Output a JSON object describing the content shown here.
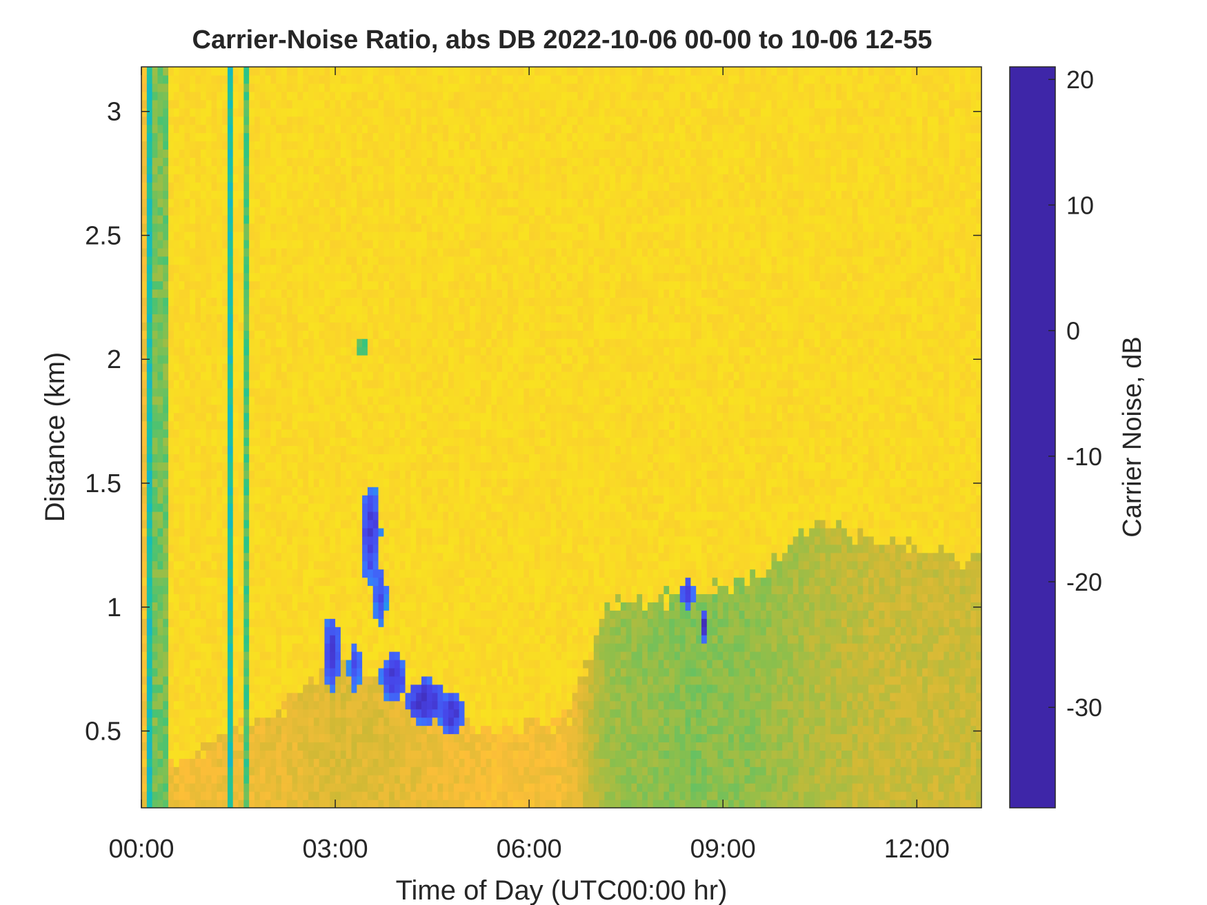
{
  "chart_data": {
    "type": "heatmap",
    "title": "Carrier-Noise Ratio, abs DB 2022-10-06 00-00 to 10-06 12-55",
    "xlabel": "Time of Day (UTC00:00 hr)",
    "ylabel": "Distance (km)",
    "colorbar_label": "Carrier Noise, dB",
    "xlim_hours": [
      0,
      13
    ],
    "ylim_km": [
      0.19,
      3.18
    ],
    "x_ticks": [
      {
        "value": 0,
        "label": "00:00"
      },
      {
        "value": 3,
        "label": "03:00"
      },
      {
        "value": 6,
        "label": "06:00"
      },
      {
        "value": 9,
        "label": "09:00"
      },
      {
        "value": 12,
        "label": "12:00"
      }
    ],
    "y_ticks": [
      {
        "value": 0.5,
        "label": "0.5"
      },
      {
        "value": 1,
        "label": "1"
      },
      {
        "value": 1.5,
        "label": "1.5"
      },
      {
        "value": 2,
        "label": "2"
      },
      {
        "value": 2.5,
        "label": "2.5"
      },
      {
        "value": 3,
        "label": "3"
      }
    ],
    "colorbar_range": [
      -38,
      21
    ],
    "colorbar_ticks": [
      {
        "value": 20,
        "label": "20"
      },
      {
        "value": 10,
        "label": "10"
      },
      {
        "value": 0,
        "label": "0"
      },
      {
        "value": -10,
        "label": "-10"
      },
      {
        "value": -20,
        "label": "-20"
      },
      {
        "value": -30,
        "label": "-30"
      }
    ],
    "colormap": [
      "#3e26a8",
      "#4743e7",
      "#3f70fd",
      "#1fa0e8",
      "#13beb8",
      "#2fc483",
      "#8cbf4c",
      "#cfb935",
      "#fcbe38",
      "#f9e022",
      "#f9fb0e"
    ],
    "background_db": -31,
    "vertical_streaks": [
      {
        "t0": 0.0,
        "t1": 0.08,
        "db": -26
      },
      {
        "t0": 0.08,
        "t1": 0.16,
        "db": -4
      },
      {
        "t0": 0.16,
        "t1": 0.42,
        "db": -13
      },
      {
        "t0": 1.33,
        "t1": 1.42,
        "db": -4
      },
      {
        "t0": 1.55,
        "t1": 1.67,
        "db": -10
      }
    ],
    "low_level_field": [
      {
        "t": 0.0,
        "top": 0.3,
        "db": -25
      },
      {
        "t": 1.8,
        "top": 0.55,
        "db": -24
      },
      {
        "t": 2.5,
        "top": 0.65,
        "db": -23
      },
      {
        "t": 3.0,
        "top": 0.8,
        "db": -22
      },
      {
        "t": 3.6,
        "top": 0.72,
        "db": -22
      },
      {
        "t": 4.5,
        "top": 0.6,
        "db": -24
      },
      {
        "t": 5.5,
        "top": 0.5,
        "db": -26
      },
      {
        "t": 6.6,
        "top": 0.55,
        "db": -25
      },
      {
        "t": 7.2,
        "top": 1.0,
        "db": -16
      },
      {
        "t": 8.5,
        "top": 1.05,
        "db": -14
      },
      {
        "t": 9.5,
        "top": 1.12,
        "db": -15
      },
      {
        "t": 10.5,
        "top": 1.35,
        "db": -18
      },
      {
        "t": 11.5,
        "top": 1.25,
        "db": -20
      },
      {
        "t": 13.0,
        "top": 1.2,
        "db": -20
      }
    ],
    "features": [
      {
        "t": 2.95,
        "d": 0.82,
        "dt": 0.14,
        "dd": 0.15,
        "db": 16
      },
      {
        "t": 3.3,
        "d": 0.76,
        "dt": 0.1,
        "dd": 0.1,
        "db": 14
      },
      {
        "t": 3.55,
        "d": 1.3,
        "dt": 0.16,
        "dd": 0.2,
        "db": 16
      },
      {
        "t": 3.7,
        "d": 1.05,
        "dt": 0.1,
        "dd": 0.12,
        "db": 14
      },
      {
        "t": 3.9,
        "d": 0.72,
        "dt": 0.2,
        "dd": 0.1,
        "db": 16
      },
      {
        "t": 4.4,
        "d": 0.62,
        "dt": 0.3,
        "dd": 0.09,
        "db": 18
      },
      {
        "t": 4.8,
        "d": 0.57,
        "dt": 0.2,
        "dd": 0.08,
        "db": 17
      },
      {
        "t": 3.42,
        "d": 2.05,
        "dt": 0.06,
        "dd": 0.06,
        "db": -5
      },
      {
        "t": 8.45,
        "d": 1.06,
        "dt": 0.1,
        "dd": 0.06,
        "db": 17
      },
      {
        "t": 8.7,
        "d": 0.93,
        "dt": 0.05,
        "dd": 0.06,
        "db": 18
      }
    ]
  }
}
